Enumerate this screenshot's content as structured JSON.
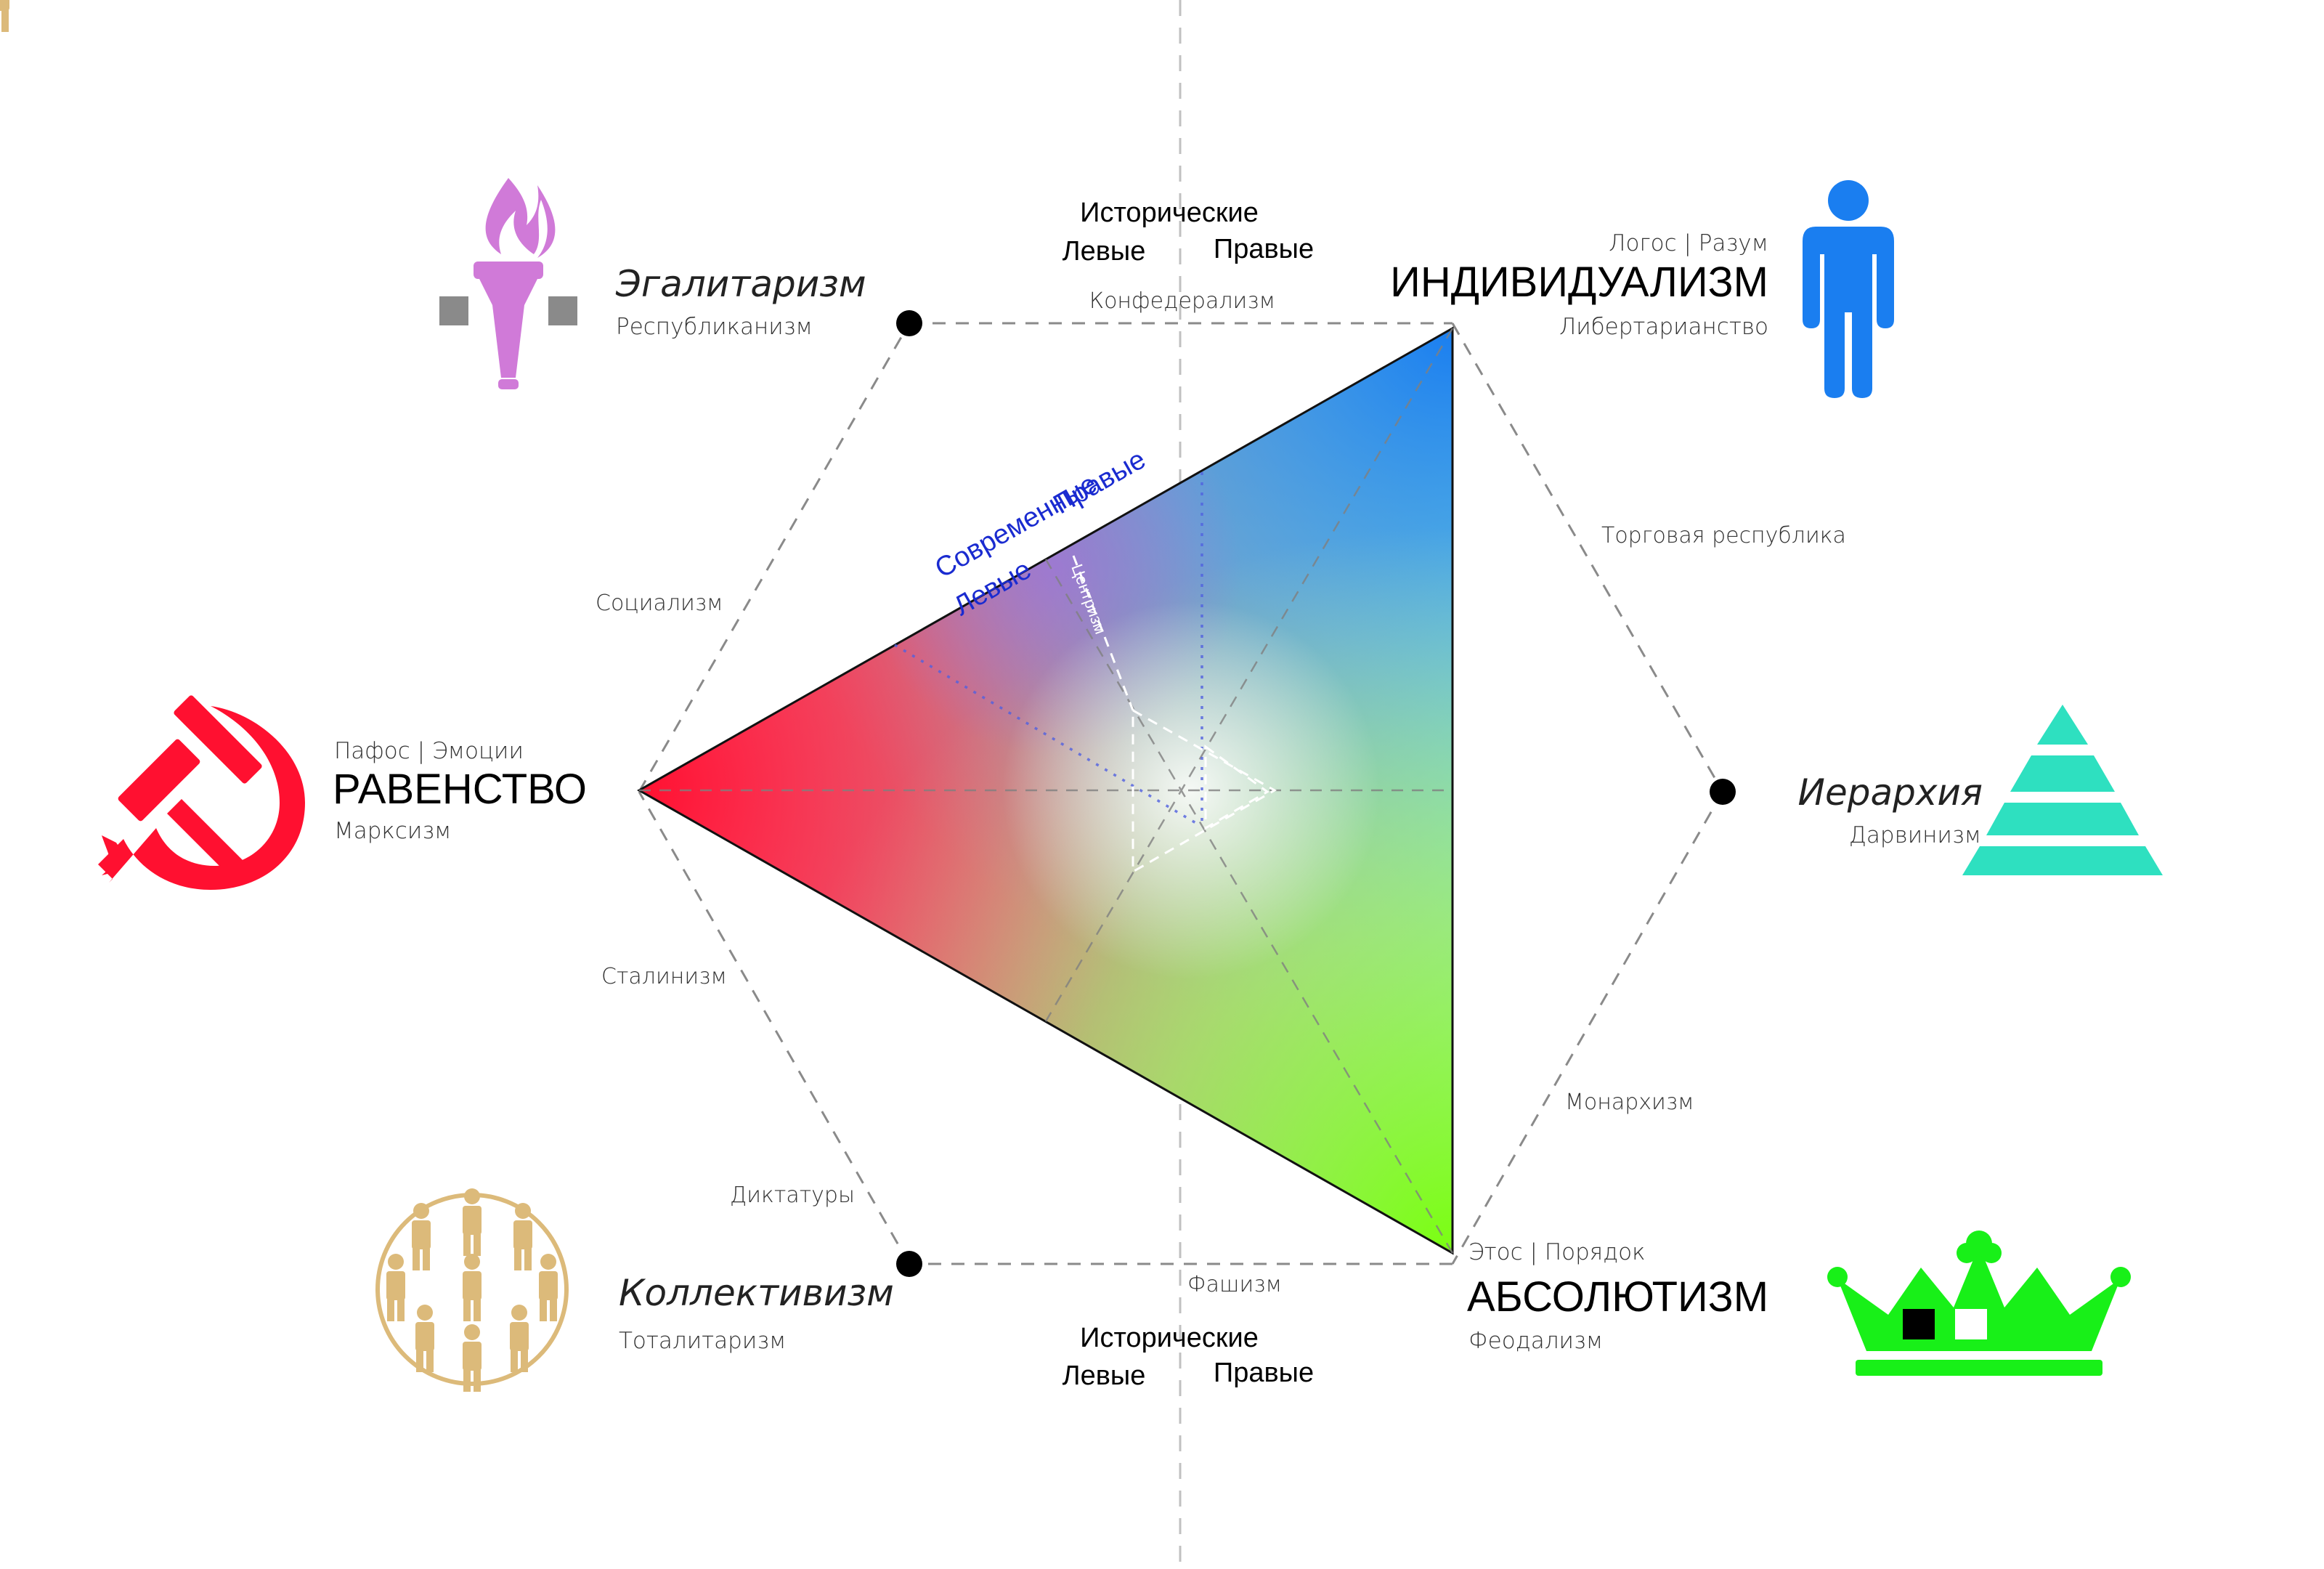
{
  "historical_top": {
    "title": "Исторические",
    "left": "Левые",
    "right": "Правые"
  },
  "historical_bottom": {
    "title": "Исторические",
    "left": "Левые",
    "right": "Правые"
  },
  "modern": {
    "title": "Современные",
    "left": "Левые",
    "right": "Правые"
  },
  "centrism": "Центризм",
  "nodes": {
    "individualism": {
      "top": "Логос | Разум",
      "title": "ИНДИВИДУАЛИЗМ",
      "sub": "Либертарианство"
    },
    "equality": {
      "top": "Пафос | Эмоции",
      "title": "РАВЕНСТВО",
      "sub": "Марксизм"
    },
    "absolutism": {
      "top": "Этос | Порядок",
      "title": "АБСОЛЮТИЗМ",
      "sub": "Феодализм"
    },
    "egalitarianism": {
      "title": "Эгалитаризм",
      "sub": "Республиканизм"
    },
    "hierarchy": {
      "title": "Иерархия",
      "sub": "Дарвинизм"
    },
    "collectivism": {
      "title": "Коллективизм",
      "sub": "Тоталитаризм"
    }
  },
  "edges": {
    "confederalism": "Конфедерализм",
    "trade_republic": "Торговая республика",
    "socialism": "Социализм",
    "stalinism": "Сталинизм",
    "monarchism": "Монархизм",
    "dictatorships": "Диктатуры",
    "fascism": "Фашизм"
  },
  "colors": {
    "equality": "#ff1030",
    "individualism": "#1a7ef0",
    "absolutism": "#7aff10",
    "modern_text": "#1a2bd0",
    "torch": "#d07ad8",
    "pyramid": "#2ee0c0",
    "crown": "#18f018",
    "people": "#dcba7a",
    "grey": "#8a8a8a"
  },
  "icons": [
    "torch-icon",
    "person-icon",
    "hammer-sickle-icon",
    "pyramid-icon",
    "crowd-circle-icon",
    "crown-icon"
  ]
}
